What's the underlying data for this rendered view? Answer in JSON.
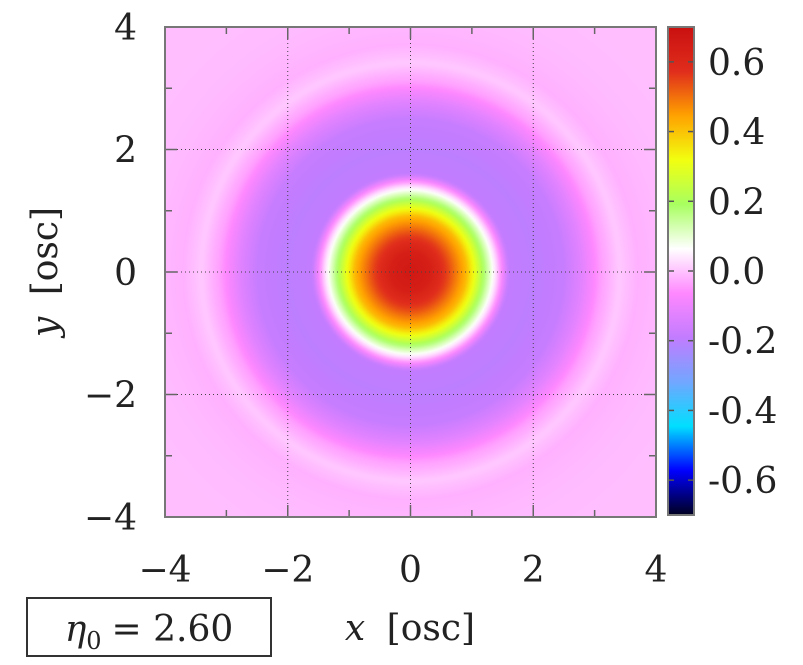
{
  "chart_data": {
    "type": "heatmap",
    "xlabel_var": "x",
    "xlabel_unit": "[osc]",
    "ylabel_var": "y",
    "ylabel_unit": "[osc]",
    "xlim": [
      -4,
      4
    ],
    "ylim": [
      -4,
      4
    ],
    "x_ticks": [
      -4,
      -2,
      0,
      2,
      4
    ],
    "y_ticks": [
      -4,
      -2,
      0,
      2,
      4
    ],
    "x_tick_labels": [
      "−4",
      "−2",
      "0",
      "2",
      "4"
    ],
    "y_tick_labels": [
      "−4",
      "−2",
      "0",
      "2",
      "4"
    ],
    "grid": true,
    "colorbar": {
      "range": [
        -0.7,
        0.7
      ],
      "ticks": [
        0.6,
        0.4,
        0.2,
        0.0,
        -0.2,
        -0.4,
        -0.6
      ],
      "tick_labels": [
        "0.6",
        "0.4",
        "0.2",
        "0.0",
        "-0.2",
        "-0.4",
        "-0.6"
      ],
      "colors": [
        "#000020",
        "#0000ff",
        "#00dfff",
        "#72a6ff",
        "#c27cff",
        "#ff88ff",
        "#ffffff",
        "#a8ff60",
        "#f2ff10",
        "#ffa200",
        "#e02d1c",
        "#c91010"
      ]
    },
    "radial_profile": {
      "r": [
        0.0,
        0.3,
        0.6,
        0.9,
        1.15,
        1.3,
        1.42,
        1.6,
        2.0,
        2.5,
        2.8,
        3.1,
        3.4,
        3.7,
        4.2,
        5.0
      ],
      "value": [
        0.66,
        0.64,
        0.55,
        0.42,
        0.22,
        0.1,
        0.0,
        -0.19,
        -0.2,
        -0.18,
        -0.12,
        -0.04,
        0.005,
        -0.02,
        -0.01,
        -0.005
      ]
    },
    "annotation": {
      "symbol": "η",
      "subscript": "0",
      "value_text": "= 2.60"
    }
  }
}
